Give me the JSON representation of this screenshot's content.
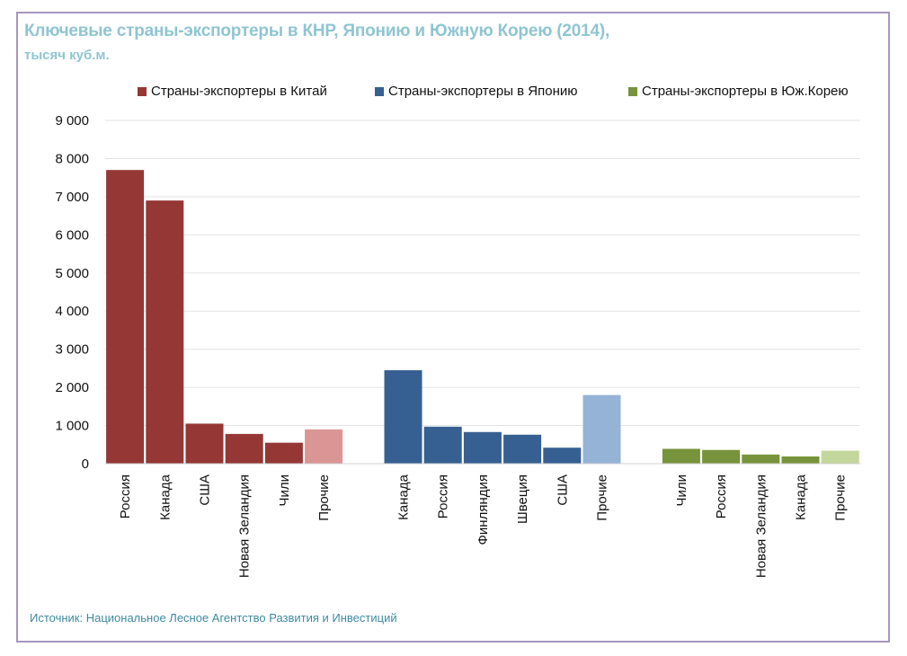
{
  "header": {
    "title": "Ключевые страны-экспортеры в КНР, Японию и Южную Корею (2014),",
    "subtitle": "тысяч куб.м."
  },
  "footer": {
    "source": "Источник: Национальное Лесное Агентство Развития и Инвестиций"
  },
  "chart_data": {
    "type": "bar",
    "title": "Ключевые страны-экспортеры в КНР, Японию и Южную Корею (2014),",
    "subtitle": "тысяч куб.м.",
    "xlabel": "",
    "ylabel": "",
    "ylim": [
      0,
      9000
    ],
    "yticks": [
      0,
      1000,
      2000,
      3000,
      4000,
      5000,
      6000,
      7000,
      8000,
      9000
    ],
    "ytick_labels": [
      "0",
      "1 000",
      "2 000",
      "3 000",
      "4 000",
      "5 000",
      "6 000",
      "7 000",
      "8 000",
      "9 000"
    ],
    "grid": true,
    "legend_position": "top",
    "series": [
      {
        "name": "Страны-экспортеры в Китай",
        "color": "#953735",
        "other_color": "#d99694",
        "categories": [
          "Россия",
          "Канада",
          "США",
          "Новая Зеландия",
          "Чили",
          "Прочие"
        ],
        "values": [
          7700,
          6900,
          1050,
          780,
          550,
          900
        ]
      },
      {
        "name": "Страны-экспортеры в Японию",
        "color": "#376092",
        "other_color": "#95b3d7",
        "categories": [
          "Канада",
          "Россия",
          "Финляндия",
          "Швеция",
          "США",
          "Прочие"
        ],
        "values": [
          2450,
          970,
          830,
          760,
          420,
          1800
        ]
      },
      {
        "name": "Страны-экспортеры в Юж.Корею",
        "color": "#77933c",
        "other_color": "#c3d69b",
        "categories": [
          "Чили",
          "Россия",
          "Новая Зеландия",
          "Канада",
          "Прочие"
        ],
        "values": [
          390,
          360,
          240,
          190,
          340
        ]
      }
    ]
  }
}
